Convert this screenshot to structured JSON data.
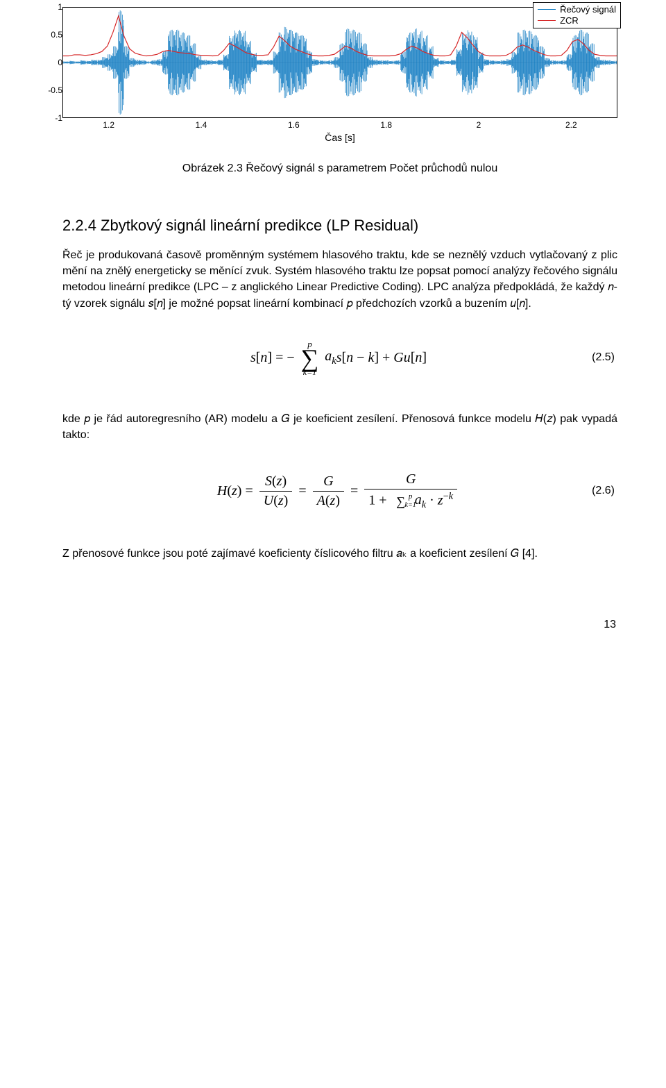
{
  "chart": {
    "type": "line-over-waveform",
    "background_color": "#ffffff",
    "axis_color": "#000000",
    "ylim": [
      -1,
      1
    ],
    "yticks": [
      -1,
      -0.5,
      0,
      0.5,
      1
    ],
    "xlim": [
      1.1,
      2.3
    ],
    "xticks": [
      1.2,
      1.4,
      1.6,
      1.8,
      2,
      2.2
    ],
    "xlabel": "Čas [s]",
    "legend": {
      "items": [
        {
          "label": "Řečový signál",
          "color": "#0072bd"
        },
        {
          "label": "ZCR",
          "color": "#d62728"
        }
      ]
    },
    "speech_signal": {
      "color": "#0072bd",
      "line_width": 0.8,
      "envelope": [
        0.02,
        0.03,
        0.02,
        0.04,
        0.03,
        0.05,
        0.05,
        0.1,
        0.15,
        0.3,
        0.95,
        0.3,
        0.08,
        0.05,
        0.04,
        0.02,
        0.04,
        0.06,
        0.22,
        0.6,
        0.6,
        0.55,
        0.5,
        0.35,
        0.12,
        0.05,
        0.04,
        0.03,
        0.05,
        0.15,
        0.5,
        0.6,
        0.58,
        0.4,
        0.18,
        0.05,
        0.04,
        0.05,
        0.2,
        0.55,
        0.65,
        0.6,
        0.55,
        0.5,
        0.22,
        0.06,
        0.04,
        0.03,
        0.04,
        0.1,
        0.35,
        0.62,
        0.6,
        0.55,
        0.35,
        0.1,
        0.05,
        0.04,
        0.04,
        0.03,
        0.04,
        0.2,
        0.55,
        0.62,
        0.58,
        0.5,
        0.3,
        0.08,
        0.04,
        0.03,
        0.05,
        0.25,
        0.55,
        0.6,
        0.5,
        0.2,
        0.06,
        0.04,
        0.03,
        0.04,
        0.06,
        0.2,
        0.55,
        0.6,
        0.58,
        0.5,
        0.3,
        0.08,
        0.04,
        0.03,
        0.04,
        0.15,
        0.5,
        0.6,
        0.55,
        0.35,
        0.1,
        0.05,
        0.04,
        0.03,
        0.02
      ]
    },
    "zcr": {
      "color": "#d62728",
      "line_width": 1.2,
      "values": [
        0.12,
        0.12,
        0.14,
        0.14,
        0.13,
        0.14,
        0.16,
        0.2,
        0.3,
        0.55,
        0.85,
        0.48,
        0.25,
        0.17,
        0.14,
        0.12,
        0.13,
        0.15,
        0.2,
        0.22,
        0.2,
        0.18,
        0.17,
        0.16,
        0.14,
        0.13,
        0.13,
        0.12,
        0.13,
        0.22,
        0.35,
        0.3,
        0.24,
        0.18,
        0.15,
        0.13,
        0.13,
        0.14,
        0.28,
        0.48,
        0.4,
        0.3,
        0.24,
        0.2,
        0.16,
        0.13,
        0.12,
        0.12,
        0.13,
        0.15,
        0.22,
        0.3,
        0.26,
        0.2,
        0.16,
        0.13,
        0.12,
        0.12,
        0.12,
        0.12,
        0.13,
        0.16,
        0.24,
        0.3,
        0.26,
        0.2,
        0.16,
        0.13,
        0.12,
        0.12,
        0.14,
        0.3,
        0.55,
        0.45,
        0.32,
        0.2,
        0.14,
        0.12,
        0.12,
        0.12,
        0.13,
        0.18,
        0.28,
        0.32,
        0.28,
        0.22,
        0.18,
        0.14,
        0.12,
        0.12,
        0.13,
        0.22,
        0.38,
        0.42,
        0.34,
        0.22,
        0.15,
        0.13,
        0.12,
        0.12,
        0.12
      ]
    }
  },
  "figure_caption": "Obrázek 2.3 Řečový signál s parametrem Počet průchodů nulou",
  "section_title": "2.2.4 Zbytkový signál lineární predikce (LP Residual)",
  "para1": "Řeč je produkovaná časově proměnným systémem hlasového traktu, kde se neznělý vzduch vytlačovaný z plic mění na znělý energeticky se měnící zvuk. Systém hlasového traktu lze popsat pomocí analýzy řečového signálu metodou lineární predikce (LPC – z anglického Linear Predictive Coding). LPC analýza předpokládá, že každý 𝑛-tý vzorek signálu 𝑠[𝑛] je možné popsat lineární kombinací 𝑝 předchozích vzorků a buzením 𝑢[𝑛].",
  "eq1_num": "(2.5)",
  "para2_a": "kde 𝑝 je řád autoregresního (AR) modelu a 𝐺 je koeficient zesílení. Přenosová funkce modelu 𝐻(𝑧) pak vypadá takto:",
  "eq2_num": "(2.6)",
  "para3": "Z přenosové funkce jsou poté zajímavé koeficienty číslicového filtru 𝑎ₖ a koeficient zesílení 𝐺 [4].",
  "page_number": "13"
}
